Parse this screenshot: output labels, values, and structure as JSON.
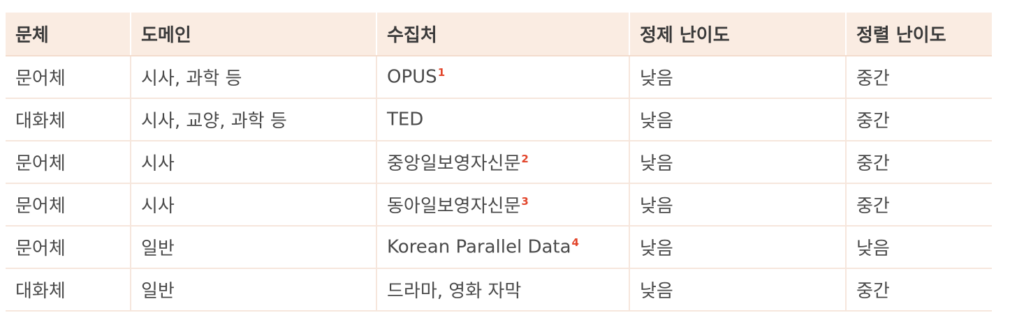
{
  "table": {
    "headers": [
      "문체",
      "도메인",
      "수집처",
      "정제 난이도",
      "정렬 난이도"
    ],
    "rows": [
      {
        "style": "문어체",
        "domain": "시사, 과학 등",
        "source": "OPUS",
        "footnote": "1",
        "clean": "낮음",
        "align": "중간"
      },
      {
        "style": "대화체",
        "domain": "시사, 교양, 과학 등",
        "source": "TED",
        "footnote": "",
        "clean": "낮음",
        "align": "중간"
      },
      {
        "style": "문어체",
        "domain": "시사",
        "source": "중앙일보영자신문",
        "footnote": "2",
        "clean": "낮음",
        "align": "중간"
      },
      {
        "style": "문어체",
        "domain": "시사",
        "source": "동아일보영자신문",
        "footnote": "3",
        "clean": "낮음",
        "align": "중간"
      },
      {
        "style": "문어체",
        "domain": "일반",
        "source": "Korean Parallel Data",
        "footnote": "4",
        "clean": "낮음",
        "align": "낮음"
      },
      {
        "style": "대화체",
        "domain": "일반",
        "source": "드라마, 영화 자막",
        "footnote": "",
        "clean": "낮음",
        "align": "중간"
      }
    ]
  },
  "colors": {
    "header_bg": "#faece2",
    "grid_line": "#f6e6dc",
    "footnote": "#e2452b"
  }
}
